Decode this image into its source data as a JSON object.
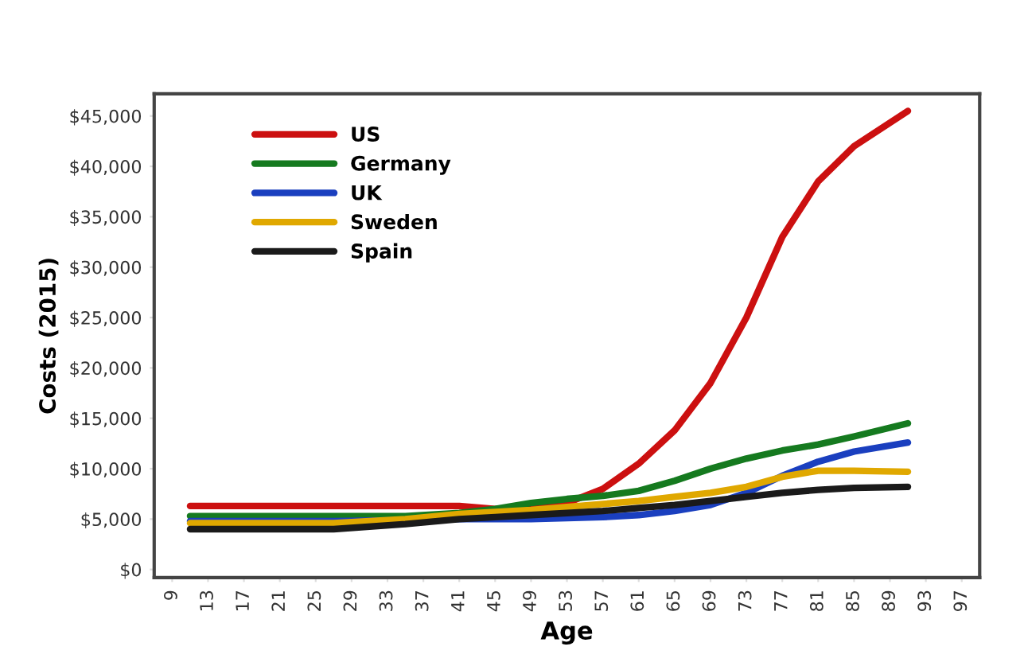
{
  "chart_data": {
    "type": "line",
    "xlabel": "Age",
    "ylabel": "Costs (2015)",
    "x": [
      11,
      19,
      27,
      35,
      41,
      45,
      49,
      53,
      57,
      61,
      65,
      69,
      73,
      77,
      81,
      85,
      91
    ],
    "series": [
      {
        "name": "US",
        "color": "#cc1010",
        "values": [
          6300,
          6300,
          6300,
          6300,
          6300,
          6000,
          6000,
          6600,
          8000,
          10500,
          13800,
          18500,
          25000,
          33000,
          38500,
          42000,
          45500
        ]
      },
      {
        "name": "Germany",
        "color": "#157a1f",
        "values": [
          5300,
          5300,
          5300,
          5300,
          5600,
          6000,
          6600,
          7000,
          7300,
          7800,
          8800,
          10000,
          11000,
          11800,
          12400,
          13200,
          14500
        ]
      },
      {
        "name": "UK",
        "color": "#1a3fbf",
        "values": [
          4800,
          4800,
          4800,
          4900,
          5000,
          5000,
          5000,
          5100,
          5200,
          5400,
          5800,
          6400,
          7600,
          9300,
          10700,
          11700,
          12600
        ]
      },
      {
        "name": "Sweden",
        "color": "#e0a800",
        "values": [
          4600,
          4600,
          4600,
          5000,
          5500,
          5700,
          5900,
          6200,
          6500,
          6800,
          7200,
          7600,
          8200,
          9200,
          9800,
          9800,
          9700
        ]
      },
      {
        "name": "Spain",
        "color": "#1a1a1a",
        "values": [
          4000,
          4000,
          4000,
          4500,
          5000,
          5200,
          5400,
          5600,
          5800,
          6100,
          6400,
          6800,
          7200,
          7600,
          7900,
          8100,
          8200
        ]
      }
    ],
    "xlim": [
      7,
      99
    ],
    "xticks": [
      9,
      13,
      17,
      21,
      25,
      29,
      33,
      37,
      41,
      45,
      49,
      53,
      57,
      61,
      65,
      69,
      73,
      77,
      81,
      85,
      89,
      93,
      97
    ],
    "ylim": [
      -800,
      47200
    ],
    "yticks": [
      {
        "value": 0,
        "label": "$0"
      },
      {
        "value": 5000,
        "label": "$5,000"
      },
      {
        "value": 10000,
        "label": "$10,000"
      },
      {
        "value": 15000,
        "label": "$15,000"
      },
      {
        "value": 20000,
        "label": "$20,000"
      },
      {
        "value": 25000,
        "label": "$25,000"
      },
      {
        "value": 30000,
        "label": "$30,000"
      },
      {
        "value": 35000,
        "label": "$35,000"
      },
      {
        "value": 40000,
        "label": "$40,000"
      },
      {
        "value": 45000,
        "label": "$45,000"
      }
    ],
    "grid": false,
    "legend": "top left",
    "line_style": "solid",
    "marker": "none"
  }
}
